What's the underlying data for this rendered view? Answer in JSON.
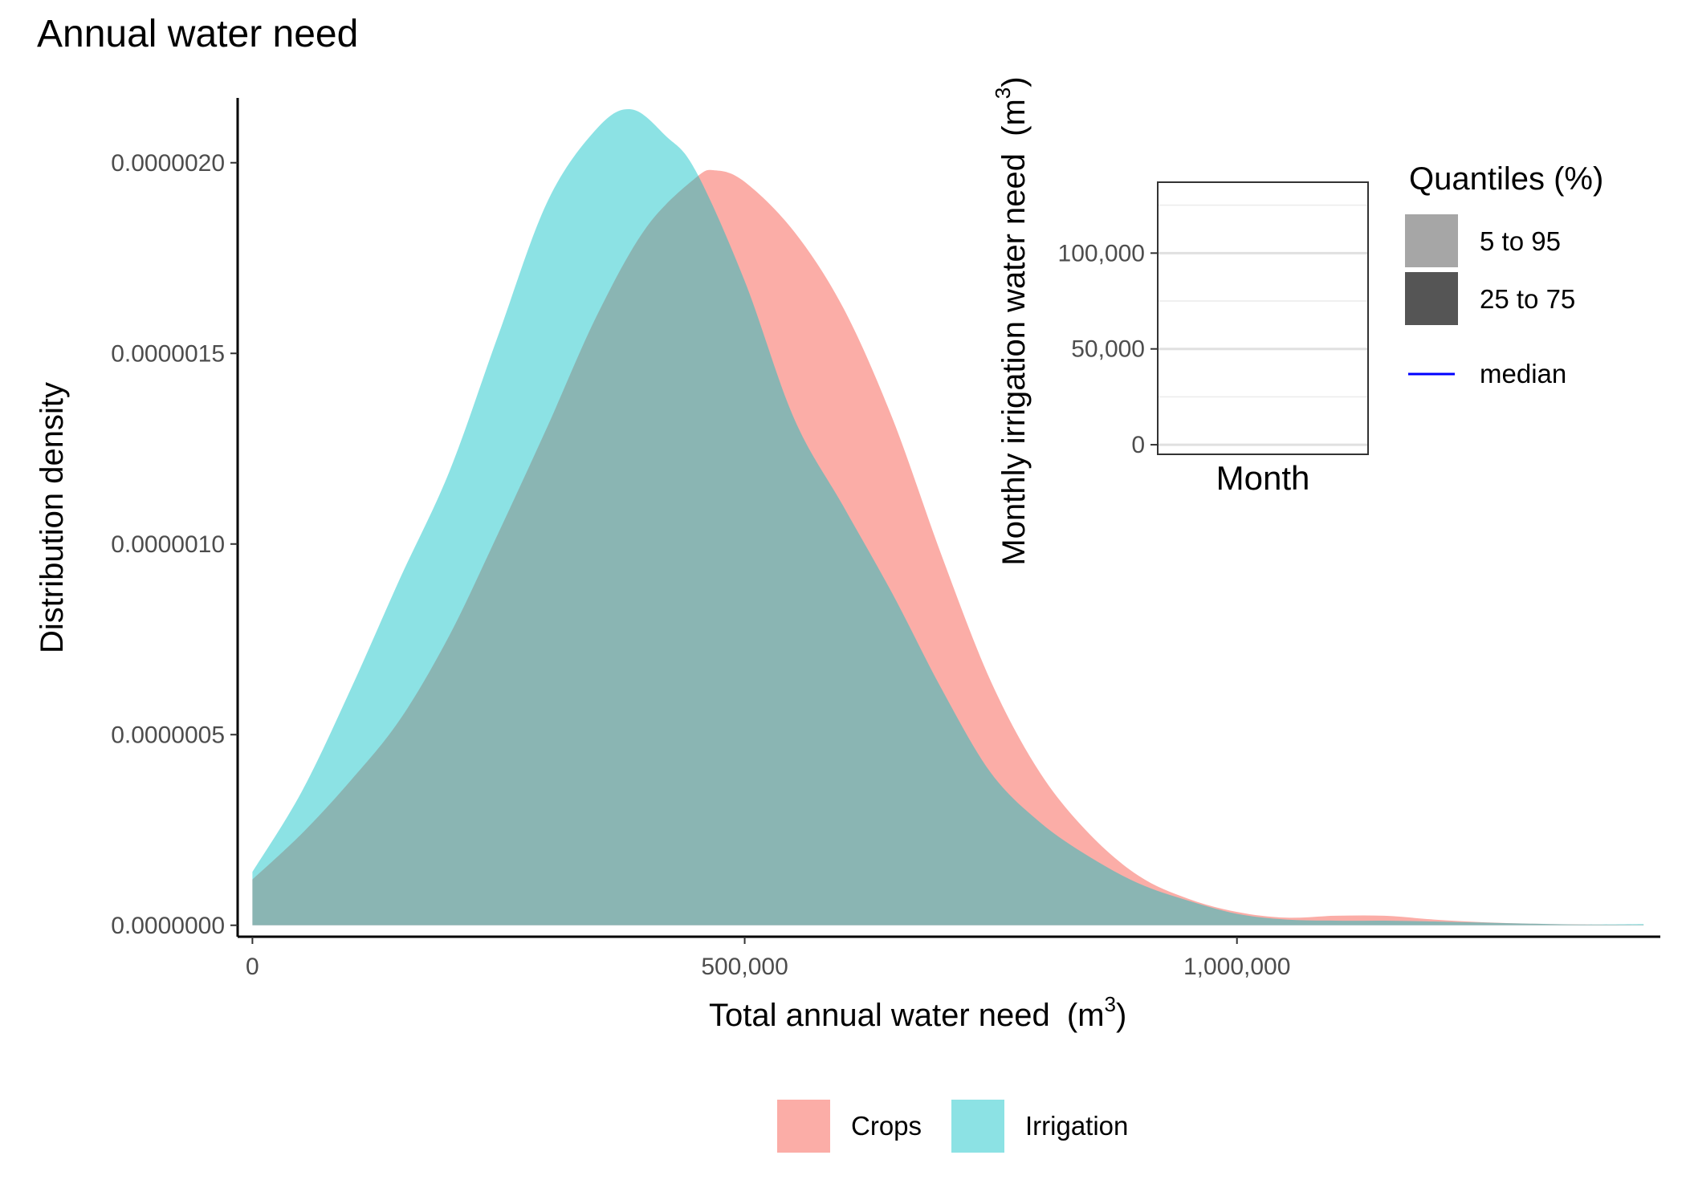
{
  "chart_data": [
    {
      "type": "area",
      "title": "Annual water need",
      "xlabel": "Total annual water need",
      "xlabel_unit": "(m",
      "xlabel_sup": "3",
      "xlabel_close": ")",
      "ylabel": "Distribution density",
      "xlim": [
        -15000,
        1430000
      ],
      "ylim": [
        -3e-08,
        2.17e-06
      ],
      "x_ticks": [
        0,
        500000,
        1000000
      ],
      "x_tick_labels": [
        "0",
        "500,000",
        "1,000,000"
      ],
      "y_ticks": [
        0,
        5e-07,
        1e-06,
        1.5e-06,
        2e-06
      ],
      "y_tick_labels": [
        "0.0000000",
        "0.0000005",
        "0.0000010",
        "0.0000015",
        "0.0000020"
      ],
      "grid": false,
      "legend_position": "bottom",
      "series": [
        {
          "name": "Crops",
          "color": "#F8766D",
          "opacity": 0.6,
          "x": [
            0,
            50000,
            100000,
            150000,
            200000,
            250000,
            300000,
            350000,
            400000,
            450000,
            470000,
            500000,
            550000,
            600000,
            650000,
            700000,
            750000,
            800000,
            850000,
            900000,
            950000,
            1000000,
            1050000,
            1100000,
            1150000,
            1200000,
            1250000,
            1300000,
            1350000,
            1413000
          ],
          "y": [
            1.2e-07,
            2.4e-07,
            3.8e-07,
            5.4e-07,
            7.6e-07,
            1.03e-06,
            1.31e-06,
            1.6e-06,
            1.83e-06,
            1.96e-06,
            1.98e-06,
            1.95e-06,
            1.82e-06,
            1.62e-06,
            1.33e-06,
            9.7e-07,
            6.4e-07,
            4e-07,
            2.4e-07,
            1.3e-07,
            7e-08,
            3.5e-08,
            2e-08,
            2.5e-08,
            2.5e-08,
            1.5e-08,
            8e-09,
            4e-09,
            2e-09,
            1e-09
          ]
        },
        {
          "name": "Irrigation",
          "color": "#00BFC4",
          "opacity": 0.45,
          "x": [
            0,
            50000,
            100000,
            150000,
            200000,
            250000,
            300000,
            350000,
            385000,
            420000,
            450000,
            500000,
            550000,
            600000,
            650000,
            700000,
            750000,
            800000,
            850000,
            900000,
            950000,
            1000000,
            1050000,
            1100000,
            1150000,
            1200000,
            1250000,
            1300000,
            1350000,
            1413000
          ],
          "y": [
            1.4e-07,
            3.5e-07,
            6.2e-07,
            9.1e-07,
            1.19e-06,
            1.55e-06,
            1.9e-06,
            2.09e-06,
            2.14e-06,
            2.07e-06,
            1.98e-06,
            1.69e-06,
            1.33e-06,
            1.1e-06,
            8.7e-07,
            6.2e-07,
            4e-07,
            2.7e-07,
            1.8e-07,
            1.1e-07,
            6.5e-08,
            3e-08,
            1.5e-08,
            1.2e-08,
            1.2e-08,
            1e-08,
            7e-09,
            4e-09,
            2e-09,
            3e-09
          ]
        }
      ]
    },
    {
      "type": "area",
      "xlabel": "Month",
      "ylabel": "Monthly irrigation water need",
      "ylabel_unit": "(m",
      "ylabel_sup": "3",
      "ylabel_close": ")",
      "ylim": [
        -5000,
        137000
      ],
      "y_ticks": [
        0,
        50000,
        100000
      ],
      "y_tick_labels": [
        "0",
        "50,000",
        "100,000"
      ],
      "y_minor_ticks": [
        25000,
        75000,
        125000
      ],
      "grid": true,
      "legend_title": "Quantiles (%)",
      "legend_entries": [
        {
          "label": "5 to 95",
          "color": "#A6A6A6",
          "kind": "fill"
        },
        {
          "label": "25 to 75",
          "color": "#555555",
          "kind": "fill"
        },
        {
          "label": "median",
          "color": "#0000FF",
          "kind": "line"
        }
      ],
      "series": []
    }
  ]
}
